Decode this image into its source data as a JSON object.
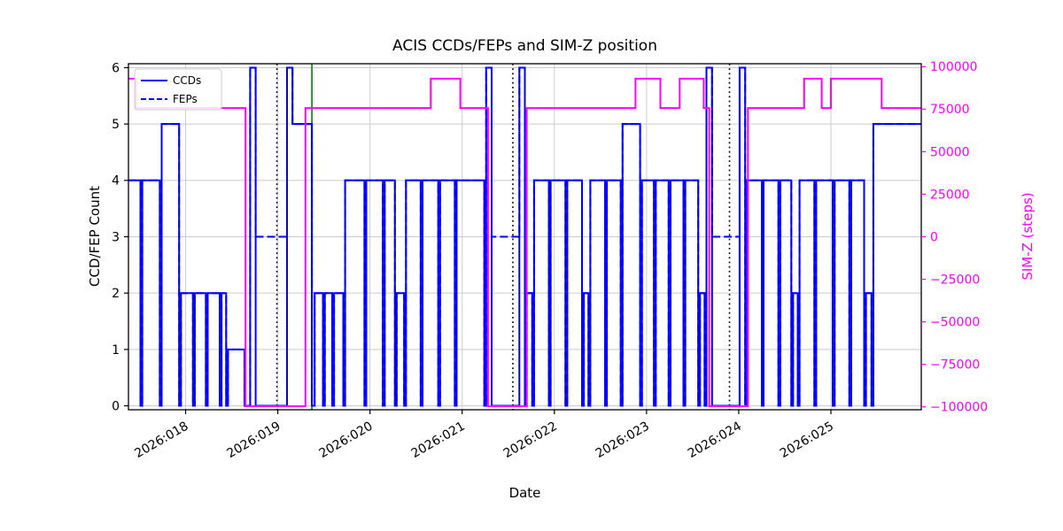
{
  "chart_data": {
    "type": "line",
    "title": "ACIS CCDs/FEPs and SIM-Z position",
    "grid": true,
    "x_axis": {
      "label": "Date",
      "range": [
        17.38,
        25.98
      ],
      "ticks": [
        {
          "value": 18,
          "label": "2026:018"
        },
        {
          "value": 19,
          "label": "2026:019"
        },
        {
          "value": 20,
          "label": "2026:020"
        },
        {
          "value": 21,
          "label": "2026:021"
        },
        {
          "value": 22,
          "label": "2026:022"
        },
        {
          "value": 23,
          "label": "2026:023"
        },
        {
          "value": 24,
          "label": "2026:024"
        },
        {
          "value": 25,
          "label": "2026:025"
        }
      ]
    },
    "y_left": {
      "label": "CCD/FEP Count",
      "range": [
        -0.07,
        6.07
      ],
      "ticks": [
        {
          "value": 0,
          "label": "0"
        },
        {
          "value": 1,
          "label": "1"
        },
        {
          "value": 2,
          "label": "2"
        },
        {
          "value": 3,
          "label": "3"
        },
        {
          "value": 4,
          "label": "4"
        },
        {
          "value": 5,
          "label": "5"
        },
        {
          "value": 6,
          "label": "6"
        }
      ]
    },
    "y_right": {
      "label": "SIM-Z (steps)",
      "color": "#ff00ff",
      "range": [
        -101700,
        101700
      ],
      "ticks": [
        {
          "value": 100000,
          "label": "100000"
        },
        {
          "value": 75000,
          "label": "75000"
        },
        {
          "value": 50000,
          "label": "50000"
        },
        {
          "value": 25000,
          "label": "25000"
        },
        {
          "value": 0,
          "label": "0"
        },
        {
          "value": -25000,
          "label": "−25000"
        },
        {
          "value": -50000,
          "label": "−50000"
        },
        {
          "value": -75000,
          "label": "−75000"
        },
        {
          "value": -100000,
          "label": "−100000"
        }
      ]
    },
    "legend": {
      "position": "upper-left",
      "entries": [
        "CCDs",
        "FEPs"
      ]
    },
    "series": [
      {
        "name": "CCDs",
        "axis": "left",
        "color": "#0000ff",
        "style": "solid",
        "step": true,
        "in_legend": true,
        "points": [
          [
            17.38,
            4
          ],
          [
            17.51,
            0
          ],
          [
            17.53,
            4
          ],
          [
            17.72,
            0
          ],
          [
            17.74,
            5
          ],
          [
            17.93,
            0
          ],
          [
            17.95,
            2
          ],
          [
            18.08,
            0
          ],
          [
            18.1,
            2
          ],
          [
            18.22,
            0
          ],
          [
            18.24,
            2
          ],
          [
            18.37,
            0
          ],
          [
            18.39,
            2
          ],
          [
            18.44,
            0
          ],
          [
            18.46,
            1
          ],
          [
            18.64,
            0
          ],
          [
            18.7,
            6
          ],
          [
            18.76,
            0
          ],
          [
            19.1,
            6
          ],
          [
            19.16,
            5
          ],
          [
            19.37,
            0
          ],
          [
            19.4,
            2
          ],
          [
            19.49,
            0
          ],
          [
            19.51,
            2
          ],
          [
            19.59,
            0
          ],
          [
            19.61,
            2
          ],
          [
            19.71,
            0
          ],
          [
            19.73,
            4
          ],
          [
            19.94,
            0
          ],
          [
            19.96,
            4
          ],
          [
            20.14,
            0
          ],
          [
            20.16,
            4
          ],
          [
            20.27,
            0
          ],
          [
            20.29,
            2
          ],
          [
            20.37,
            0
          ],
          [
            20.39,
            4
          ],
          [
            20.55,
            0
          ],
          [
            20.57,
            4
          ],
          [
            20.74,
            0
          ],
          [
            20.76,
            4
          ],
          [
            20.92,
            0
          ],
          [
            20.94,
            4
          ],
          [
            21.24,
            0
          ],
          [
            21.26,
            6
          ],
          [
            21.32,
            0
          ],
          [
            21.62,
            6
          ],
          [
            21.68,
            0
          ],
          [
            21.7,
            2
          ],
          [
            21.76,
            0
          ],
          [
            21.78,
            4
          ],
          [
            21.94,
            0
          ],
          [
            21.96,
            4
          ],
          [
            22.12,
            0
          ],
          [
            22.14,
            4
          ],
          [
            22.3,
            0
          ],
          [
            22.32,
            2
          ],
          [
            22.37,
            0
          ],
          [
            22.39,
            4
          ],
          [
            22.55,
            0
          ],
          [
            22.57,
            4
          ],
          [
            22.72,
            0
          ],
          [
            22.74,
            5
          ],
          [
            22.93,
            0
          ],
          [
            22.95,
            4
          ],
          [
            23.08,
            0
          ],
          [
            23.1,
            4
          ],
          [
            23.24,
            0
          ],
          [
            23.26,
            4
          ],
          [
            23.4,
            0
          ],
          [
            23.42,
            4
          ],
          [
            23.56,
            0
          ],
          [
            23.58,
            2
          ],
          [
            23.63,
            0
          ],
          [
            23.65,
            6
          ],
          [
            23.71,
            0
          ],
          [
            24.01,
            6
          ],
          [
            24.07,
            0
          ],
          [
            24.09,
            4
          ],
          [
            24.25,
            0
          ],
          [
            24.27,
            4
          ],
          [
            24.43,
            0
          ],
          [
            24.45,
            4
          ],
          [
            24.57,
            0
          ],
          [
            24.59,
            2
          ],
          [
            24.64,
            0
          ],
          [
            24.66,
            4
          ],
          [
            24.82,
            0
          ],
          [
            24.84,
            4
          ],
          [
            25.02,
            0
          ],
          [
            25.04,
            4
          ],
          [
            25.2,
            0
          ],
          [
            25.22,
            4
          ],
          [
            25.36,
            0
          ],
          [
            25.38,
            2
          ],
          [
            25.44,
            0
          ],
          [
            25.46,
            5
          ]
        ]
      },
      {
        "name": "FEPs",
        "axis": "left",
        "color": "#0000ff",
        "style": "dashed",
        "step": true,
        "in_legend": true,
        "points": [
          [
            17.38,
            4
          ],
          [
            17.51,
            0
          ],
          [
            17.53,
            4
          ],
          [
            17.72,
            0
          ],
          [
            17.74,
            5
          ],
          [
            17.93,
            0
          ],
          [
            17.95,
            2
          ],
          [
            18.08,
            0
          ],
          [
            18.1,
            2
          ],
          [
            18.22,
            0
          ],
          [
            18.24,
            2
          ],
          [
            18.37,
            0
          ],
          [
            18.39,
            2
          ],
          [
            18.44,
            0
          ],
          [
            18.46,
            1
          ],
          [
            18.64,
            0
          ],
          [
            18.7,
            6
          ],
          [
            18.76,
            3
          ],
          [
            19.1,
            6
          ],
          [
            19.16,
            5
          ],
          [
            19.37,
            0
          ],
          [
            19.4,
            2
          ],
          [
            19.49,
            0
          ],
          [
            19.51,
            2
          ],
          [
            19.59,
            0
          ],
          [
            19.61,
            2
          ],
          [
            19.71,
            0
          ],
          [
            19.73,
            4
          ],
          [
            19.94,
            0
          ],
          [
            19.96,
            4
          ],
          [
            20.14,
            0
          ],
          [
            20.16,
            4
          ],
          [
            20.27,
            0
          ],
          [
            20.29,
            2
          ],
          [
            20.37,
            0
          ],
          [
            20.39,
            4
          ],
          [
            20.55,
            0
          ],
          [
            20.57,
            4
          ],
          [
            20.74,
            0
          ],
          [
            20.76,
            4
          ],
          [
            20.92,
            0
          ],
          [
            20.94,
            4
          ],
          [
            21.24,
            0
          ],
          [
            21.26,
            6
          ],
          [
            21.32,
            3
          ],
          [
            21.62,
            6
          ],
          [
            21.68,
            0
          ],
          [
            21.7,
            2
          ],
          [
            21.76,
            0
          ],
          [
            21.78,
            4
          ],
          [
            21.94,
            0
          ],
          [
            21.96,
            4
          ],
          [
            22.12,
            0
          ],
          [
            22.14,
            4
          ],
          [
            22.3,
            0
          ],
          [
            22.32,
            2
          ],
          [
            22.37,
            0
          ],
          [
            22.39,
            4
          ],
          [
            22.55,
            0
          ],
          [
            22.57,
            4
          ],
          [
            22.72,
            0
          ],
          [
            22.74,
            5
          ],
          [
            22.93,
            0
          ],
          [
            22.95,
            4
          ],
          [
            23.08,
            0
          ],
          [
            23.1,
            4
          ],
          [
            23.24,
            0
          ],
          [
            23.26,
            4
          ],
          [
            23.4,
            0
          ],
          [
            23.42,
            4
          ],
          [
            23.56,
            0
          ],
          [
            23.58,
            2
          ],
          [
            23.63,
            0
          ],
          [
            23.65,
            6
          ],
          [
            23.71,
            3
          ],
          [
            24.01,
            6
          ],
          [
            24.07,
            0
          ],
          [
            24.09,
            4
          ],
          [
            24.25,
            0
          ],
          [
            24.27,
            4
          ],
          [
            24.43,
            0
          ],
          [
            24.45,
            4
          ],
          [
            24.57,
            0
          ],
          [
            24.59,
            2
          ],
          [
            24.64,
            0
          ],
          [
            24.66,
            4
          ],
          [
            24.82,
            0
          ],
          [
            24.84,
            4
          ],
          [
            25.02,
            0
          ],
          [
            25.04,
            4
          ],
          [
            25.2,
            0
          ],
          [
            25.22,
            4
          ],
          [
            25.36,
            0
          ],
          [
            25.38,
            2
          ],
          [
            25.44,
            0
          ],
          [
            25.46,
            5
          ]
        ]
      },
      {
        "name": "SIM-Z",
        "axis": "right",
        "color": "#ff00ff",
        "style": "solid",
        "step": true,
        "in_legend": false,
        "points": [
          [
            17.38,
            92904
          ],
          [
            17.46,
            75624
          ],
          [
            18.65,
            -99616
          ],
          [
            19.3,
            75624
          ],
          [
            20.66,
            92904
          ],
          [
            20.98,
            75624
          ],
          [
            21.28,
            -99616
          ],
          [
            21.7,
            75624
          ],
          [
            22.88,
            92904
          ],
          [
            23.15,
            75624
          ],
          [
            23.36,
            92904
          ],
          [
            23.62,
            75624
          ],
          [
            23.68,
            -99616
          ],
          [
            24.1,
            75624
          ],
          [
            24.71,
            92904
          ],
          [
            24.9,
            75624
          ],
          [
            25.0,
            92904
          ],
          [
            25.55,
            75624
          ]
        ]
      }
    ],
    "vlines": [
      {
        "x": 18.99,
        "color": "#000000",
        "style": "dotted"
      },
      {
        "x": 21.55,
        "color": "#000000",
        "style": "dotted"
      },
      {
        "x": 23.9,
        "color": "#000000",
        "style": "dotted"
      },
      {
        "x": 19.37,
        "color": "#008000",
        "style": "solid"
      }
    ],
    "colors": {
      "grid": "#cccccc",
      "spine": "#000000",
      "simz": "#ff00ff",
      "ccds": "#0000ff"
    }
  }
}
